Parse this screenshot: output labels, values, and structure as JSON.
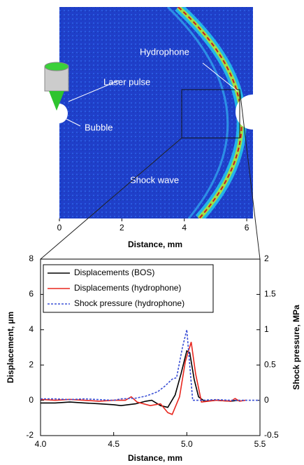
{
  "chart_data": [
    {
      "type": "image",
      "annotations": [
        "Hydrophone",
        "Laser pulse",
        "Bubble",
        "Shock wave"
      ],
      "xlabel": "Distance, mm",
      "xlim": [
        0,
        6.2
      ],
      "xticks": [
        0,
        2,
        4,
        6
      ]
    },
    {
      "type": "line",
      "xlabel": "Distance, mm",
      "ylabel": "Displacement, µm",
      "y2label": "Shock pressure, MPa",
      "xlim": [
        4,
        5.5
      ],
      "xticks": [
        {
          "value": 4,
          "label": "4.0"
        },
        4.5,
        {
          "value": 5,
          "label": "5.0"
        },
        5.5
      ],
      "ylim": [
        -2,
        8
      ],
      "yticks": [
        -2,
        0,
        2,
        4,
        6,
        8
      ],
      "y2lim": [
        -0.5,
        2
      ],
      "y2ticks": [
        -0.5,
        0,
        0.5,
        1,
        1.5,
        2
      ],
      "legend": "top-left",
      "series": [
        {
          "name": "Displacements (BOS)",
          "color": "#000000",
          "style": "solid",
          "x": [
            4.0,
            4.1,
            4.2,
            4.3,
            4.4,
            4.5,
            4.55,
            4.65,
            4.72,
            4.76,
            4.82,
            4.87,
            4.92,
            4.96,
            5.0,
            5.02,
            5.05,
            5.08,
            5.12,
            5.2,
            5.3,
            5.35
          ],
          "values": [
            -0.15,
            -0.15,
            -0.1,
            -0.15,
            -0.2,
            -0.25,
            -0.3,
            -0.2,
            -0.05,
            0.0,
            -0.3,
            -0.4,
            0.3,
            1.5,
            2.8,
            2.7,
            1.2,
            0.2,
            -0.05,
            0.0,
            -0.05,
            0.0
          ]
        },
        {
          "name": "Displacements (hydrophone)",
          "color": "#e8271f",
          "style": "solid",
          "x": [
            4.0,
            4.1,
            4.2,
            4.3,
            4.4,
            4.5,
            4.58,
            4.62,
            4.66,
            4.75,
            4.82,
            4.87,
            4.9,
            4.95,
            4.99,
            5.03,
            5.06,
            5.1,
            5.2,
            5.3,
            5.33,
            5.36,
            5.4
          ],
          "values": [
            0.05,
            0.0,
            0.05,
            0.0,
            -0.05,
            0.0,
            0.0,
            0.2,
            -0.1,
            -0.3,
            -0.2,
            -0.7,
            -0.8,
            0.2,
            2.2,
            3.3,
            1.5,
            -0.1,
            0.0,
            -0.05,
            0.1,
            -0.05,
            0.0
          ]
        },
        {
          "name": "Shock pressure (hydrophone)",
          "color": "#3b50d6",
          "style": "dotted",
          "axis": "y2",
          "x": [
            4.0,
            4.1,
            4.2,
            4.3,
            4.4,
            4.5,
            4.55,
            4.65,
            4.72,
            4.8,
            4.85,
            4.9,
            4.93,
            4.97,
            5.0,
            5.02,
            5.04,
            5.1,
            5.2,
            5.3,
            5.4,
            5.5
          ],
          "values": [
            0.02,
            0.02,
            0.01,
            0.02,
            0.01,
            0.0,
            0.02,
            0.03,
            0.06,
            0.12,
            0.2,
            0.3,
            0.32,
            0.75,
            1.0,
            0.5,
            0.0,
            0.0,
            0.01,
            0.0,
            0.0,
            0.0
          ]
        }
      ]
    }
  ]
}
